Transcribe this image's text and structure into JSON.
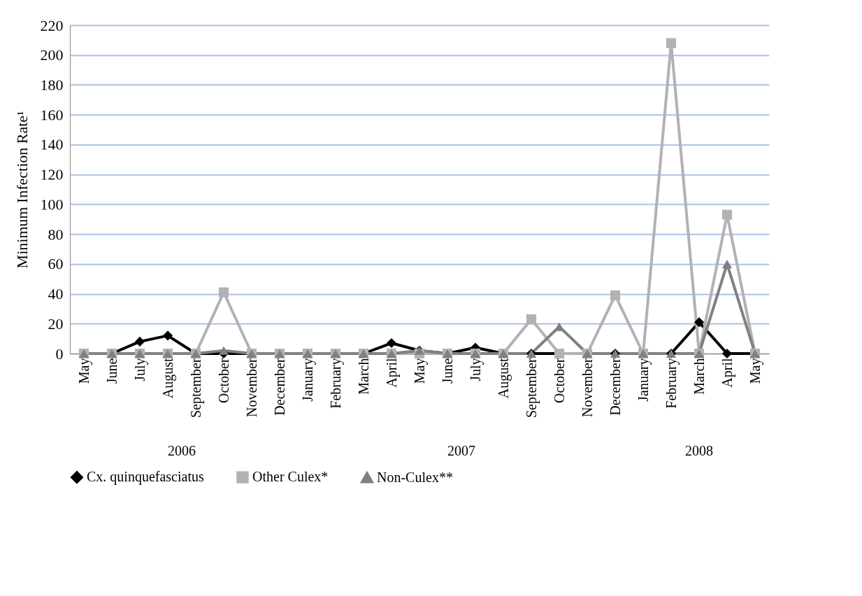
{
  "chart_data": {
    "type": "line",
    "ylabel": "Minimum Infection Rate¹",
    "categories": [
      "May",
      "June",
      "July",
      "August",
      "September",
      "October",
      "November",
      "December",
      "January",
      "February",
      "March",
      "April",
      "May",
      "June",
      "July",
      "August",
      "September",
      "October",
      "November",
      "December",
      "January",
      "February",
      "March",
      "April",
      "May"
    ],
    "series": [
      {
        "name": "Cx. quinquefasciatus",
        "color": "#000000",
        "marker": "diamond",
        "values": [
          0,
          0,
          8,
          12,
          0,
          0,
          0,
          0,
          0,
          0,
          0,
          7,
          2,
          0,
          4,
          0,
          0,
          0,
          0,
          0,
          0,
          0,
          21,
          0,
          0
        ]
      },
      {
        "name": "Other Culex*",
        "color": "#b2b2b2",
        "marker": "square",
        "values": [
          0,
          0,
          0,
          0,
          0,
          41,
          0,
          0,
          0,
          0,
          0,
          0,
          0,
          0,
          0,
          0,
          23,
          0,
          0,
          39,
          0,
          208,
          0,
          93,
          0
        ]
      },
      {
        "name": "Non-Culex**",
        "color": "#808080",
        "marker": "triangle",
        "values": [
          0,
          0,
          0,
          0,
          0,
          2,
          0,
          0,
          0,
          0,
          0,
          0,
          2,
          0,
          0,
          0,
          0,
          18,
          0,
          0,
          0,
          0,
          0,
          60,
          0
        ]
      }
    ],
    "ylim": [
      0,
      220
    ],
    "yticks": [
      0,
      20,
      40,
      60,
      80,
      100,
      120,
      140,
      160,
      180,
      200,
      220
    ],
    "grid": "y",
    "legend": "bottom",
    "annotations": [
      "2006",
      "2007",
      "2008"
    ]
  }
}
